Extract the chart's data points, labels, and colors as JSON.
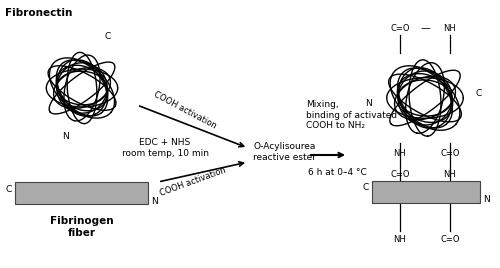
{
  "bg_color": "#ffffff",
  "fig_width": 5.0,
  "fig_height": 2.68,
  "dpi": 100,
  "fibronectin_label": "Fibronectin",
  "fibrinogen_label": "Fibrinogen\nfiber",
  "edc_nhs_label": "EDC + NHS\nroom temp, 10 min",
  "cooh_top_label": "COOH activation",
  "cooh_bot_label": "COOH activation",
  "o_acyl_label": "O-Acylisourea\nreactive ester",
  "mixing_label": "Mixing,\nbinding of activated\nCOOH to NH₂",
  "time_label": "6 h at 0–4 °C",
  "arrow_color": "#000000",
  "fiber_color_face": "#aaaaaa",
  "fiber_color_edge": "#444444",
  "line_color": "#000000"
}
